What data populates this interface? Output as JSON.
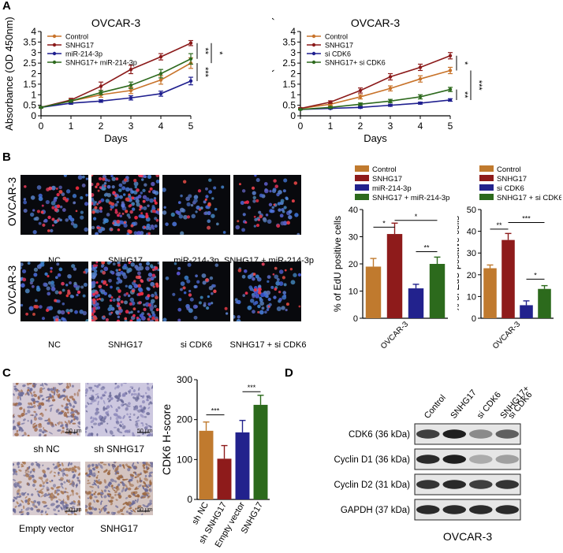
{
  "panels": {
    "A": "A",
    "B": "B",
    "C": "C",
    "D": "D"
  },
  "chart_data": [
    {
      "id": "A-left",
      "type": "line",
      "title": "OVCAR-3",
      "xlabel": "Days",
      "ylabel": "Absorbance (OD 450nm)",
      "xlim": [
        0,
        5
      ],
      "ylim": [
        0,
        4
      ],
      "x": [
        0,
        1,
        2,
        3,
        4,
        5
      ],
      "series": [
        {
          "name": "Control",
          "color": "#c8732a",
          "values": [
            0.4,
            0.7,
            1.0,
            1.2,
            1.7,
            2.5
          ],
          "errors": [
            0.03,
            0.08,
            0.12,
            0.15,
            0.2,
            0.25
          ]
        },
        {
          "name": "SNHG17",
          "color": "#8b1a1a",
          "values": [
            0.4,
            0.75,
            1.4,
            2.2,
            2.8,
            3.45
          ],
          "errors": [
            0.03,
            0.08,
            0.2,
            0.2,
            0.15,
            0.12
          ]
        },
        {
          "name": "miR-214-3p",
          "color": "#1f1f8f",
          "values": [
            0.4,
            0.6,
            0.7,
            0.85,
            1.05,
            1.65
          ],
          "errors": [
            0.03,
            0.05,
            0.06,
            0.1,
            0.12,
            0.18
          ]
        },
        {
          "name": "SNHG17+ miR-214-3p",
          "color": "#2e6a1e",
          "values": [
            0.4,
            0.7,
            1.1,
            1.45,
            2.0,
            2.7
          ],
          "errors": [
            0.03,
            0.06,
            0.1,
            0.15,
            0.2,
            0.25
          ]
        }
      ],
      "significance": [
        "**",
        "*",
        "***"
      ]
    },
    {
      "id": "A-right",
      "type": "line",
      "title": "OVCAR-3",
      "xlabel": "Days",
      "ylabel": "Absorbance (OD 450nm)",
      "xlim": [
        0,
        5
      ],
      "ylim": [
        0,
        4
      ],
      "x": [
        0,
        1,
        2,
        3,
        4,
        5
      ],
      "series": [
        {
          "name": "Control",
          "color": "#c8732a",
          "values": [
            0.35,
            0.55,
            0.9,
            1.3,
            1.75,
            2.15
          ],
          "errors": [
            0.03,
            0.06,
            0.1,
            0.12,
            0.15,
            0.15
          ]
        },
        {
          "name": "SNHG17",
          "color": "#8b1a1a",
          "values": [
            0.35,
            0.65,
            1.2,
            1.85,
            2.3,
            2.85
          ],
          "errors": [
            0.03,
            0.06,
            0.12,
            0.15,
            0.15,
            0.15
          ]
        },
        {
          "name": "si CDK6",
          "color": "#1f1f8f",
          "values": [
            0.3,
            0.35,
            0.4,
            0.5,
            0.6,
            0.75
          ],
          "errors": [
            0.02,
            0.03,
            0.04,
            0.05,
            0.05,
            0.06
          ]
        },
        {
          "name": "SNHG17+ si CDK6",
          "color": "#2e6a1e",
          "values": [
            0.3,
            0.4,
            0.55,
            0.7,
            0.9,
            1.25
          ],
          "errors": [
            0.02,
            0.04,
            0.06,
            0.08,
            0.1,
            0.1
          ]
        }
      ],
      "significance": [
        "*",
        "**",
        "***"
      ]
    },
    {
      "id": "B-left",
      "type": "bar",
      "xlabel": "OVCAR-3",
      "ylabel": "% of EdU positive cells",
      "ylim": [
        0,
        40
      ],
      "yticks": [
        0,
        10,
        20,
        30,
        40
      ],
      "series": [
        {
          "name": "Control",
          "color": "#c07a2e",
          "value": 19,
          "error": 3
        },
        {
          "name": "SNHG17",
          "color": "#8e1b1b",
          "value": 31,
          "error": 4
        },
        {
          "name": "miR-214-3p",
          "color": "#22228d",
          "value": 11,
          "error": 1.5
        },
        {
          "name": "SNHG17 + miR-214-3p",
          "color": "#2c6a1c",
          "value": 20,
          "error": 2.5
        }
      ],
      "significance": [
        "*",
        "*",
        "**"
      ]
    },
    {
      "id": "B-right",
      "type": "bar",
      "xlabel": "OVCAR-3",
      "ylabel": "% of EdU positive cells",
      "ylim": [
        0,
        50
      ],
      "yticks": [
        0,
        10,
        20,
        30,
        40,
        50
      ],
      "series": [
        {
          "name": "Control",
          "color": "#c07a2e",
          "value": 23,
          "error": 1.5
        },
        {
          "name": "SNHG17",
          "color": "#8e1b1b",
          "value": 36,
          "error": 3
        },
        {
          "name": "si CDK6",
          "color": "#22228d",
          "value": 6,
          "error": 2
        },
        {
          "name": "SNHG17 + si CDK6",
          "color": "#2c6a1c",
          "value": 13.5,
          "error": 1.5
        }
      ],
      "significance": [
        "**",
        "***",
        "*"
      ]
    },
    {
      "id": "C-right",
      "type": "bar",
      "ylabel": "CDK6 H-score",
      "ylim": [
        0,
        300
      ],
      "yticks": [
        0,
        100,
        200,
        300
      ],
      "categories": [
        "sh NC",
        "sh SNHG17",
        "Empty vector",
        "SNHG17"
      ],
      "colors": [
        "#c07a2e",
        "#8e1b1b",
        "#22228d",
        "#2c6a1c"
      ],
      "values": [
        172,
        102,
        168,
        237
      ],
      "errors": [
        22,
        33,
        30,
        24
      ],
      "significance": [
        "***",
        "***"
      ]
    }
  ],
  "panelB": {
    "row1_side_label": "OVCAR-3",
    "row2_side_label": "OVCAR-3",
    "row1_labels": [
      "NC",
      "SNHG17",
      "miR-214-3p",
      "SNHG17 + miR-214-3p"
    ],
    "row2_labels": [
      "NC",
      "SNHG17",
      "si CDK6",
      "SNHG17 + si CDK6"
    ]
  },
  "panelC": {
    "labels": [
      "sh NC",
      "sh SNHG17",
      "Empty vector",
      "SNHG17"
    ],
    "scale_bar": "50 μm"
  },
  "panelD": {
    "lanes": [
      "Control",
      "SNHG17",
      "si CDK6",
      "SNHG17+ si CDK6"
    ],
    "proteins": [
      "CDK6 (36 kDa)",
      "Cyclin D1 (36 kDa)",
      "Cyclin D2 (31 kDa)",
      "GAPDH (37 kDa)"
    ],
    "band_intensity": [
      [
        0.8,
        0.95,
        0.45,
        0.65
      ],
      [
        0.9,
        0.95,
        0.3,
        0.35
      ],
      [
        0.85,
        0.9,
        0.8,
        0.85
      ],
      [
        0.9,
        0.9,
        0.9,
        0.9
      ]
    ],
    "footer": "OVCAR-3"
  }
}
